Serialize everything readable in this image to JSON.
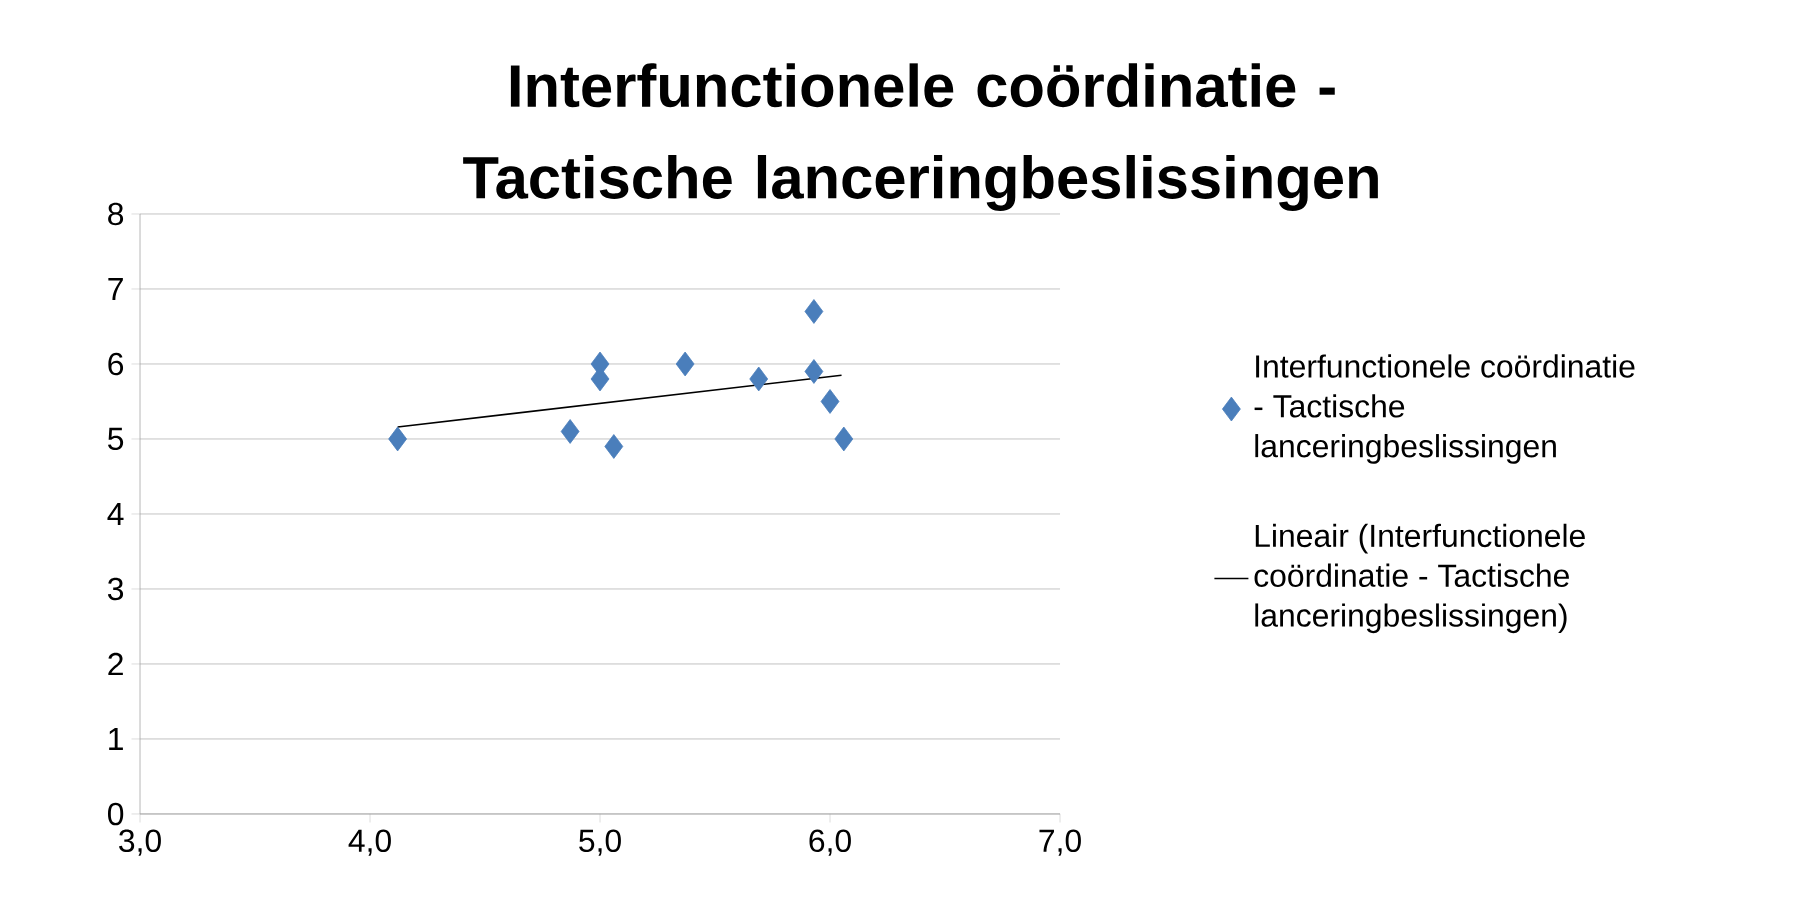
{
  "chart_data": {
    "type": "scatter",
    "title": "Interfunctionele coördinatie - Tactische lanceringbeslissingen",
    "series": [
      {
        "name": "Interfunctionele coördinatie - Tactische lanceringbeslissingen",
        "color": "#4a7ebb",
        "x": [
          4.12,
          4.87,
          5.0,
          5.0,
          5.06,
          5.37,
          5.69,
          5.93,
          5.93,
          6.0,
          6.06
        ],
        "values": [
          5.0,
          5.1,
          6.0,
          5.8,
          4.9,
          6.0,
          5.8,
          6.7,
          5.9,
          5.5,
          5.0
        ]
      },
      {
        "name": "Lineair (Interfunctionele coördinatie - Tactische lanceringbeslissingen)",
        "type": "line",
        "marker": "none",
        "color": "#000000",
        "x": [
          4.12,
          6.05
        ],
        "values": [
          5.16,
          5.85
        ]
      }
    ],
    "xlim": [
      3,
      7
    ],
    "ylim": [
      0,
      8
    ],
    "xticks": [
      {
        "value": 3,
        "label": "3,0"
      },
      {
        "value": 4,
        "label": "4,0"
      },
      {
        "value": 5,
        "label": "5,0"
      },
      {
        "value": 6,
        "label": "6,0"
      },
      {
        "value": 7,
        "label": "7,0"
      }
    ],
    "yticks": [
      0,
      1,
      2,
      3,
      4,
      5,
      6,
      7,
      8
    ],
    "grid": "y",
    "legend": "right",
    "marker": "diamond",
    "line_style": "solid"
  }
}
